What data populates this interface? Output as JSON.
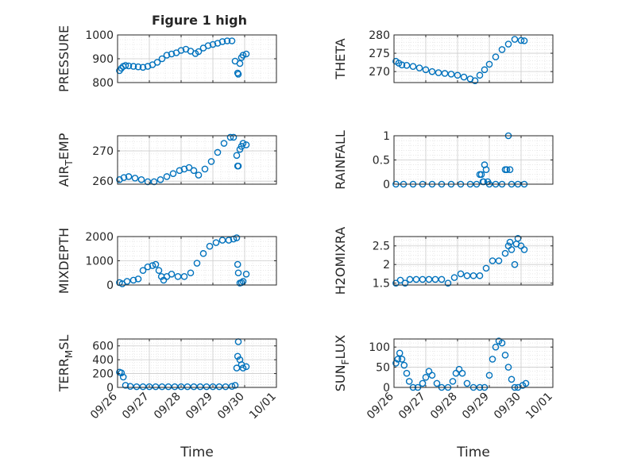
{
  "figure": {
    "title": "Figure 1 high",
    "marker_color": "#0072BD",
    "x_ticks": [
      "09/26",
      "09/27",
      "09/28",
      "09/29",
      "09/30",
      "10/01"
    ],
    "xlabel": "Time"
  },
  "chart_data": [
    {
      "type": "scatter",
      "ylabel": "PRESSURE",
      "ylim": [
        800,
        1000
      ],
      "yticks": [
        800,
        900,
        1000
      ],
      "grid": true,
      "x": [
        0.06,
        0.12,
        0.18,
        0.25,
        0.35,
        0.5,
        0.65,
        0.8,
        0.95,
        1.1,
        1.25,
        1.4,
        1.55,
        1.7,
        1.85,
        2.0,
        2.15,
        2.3,
        2.45,
        2.55,
        2.7,
        2.85,
        3.0,
        3.15,
        3.3,
        3.45,
        3.6,
        3.7,
        3.78,
        3.8,
        3.85,
        3.9,
        3.95,
        4.05
      ],
      "values": [
        850,
        860,
        868,
        872,
        870,
        868,
        866,
        864,
        868,
        875,
        885,
        900,
        915,
        920,
        925,
        935,
        940,
        932,
        922,
        930,
        945,
        955,
        960,
        965,
        972,
        975,
        975,
        890,
        840,
        835,
        880,
        905,
        915,
        920
      ]
    },
    {
      "type": "scatter",
      "ylabel": "THETA",
      "ylim": [
        267,
        280
      ],
      "yticks": [
        270,
        275,
        280
      ],
      "grid": true,
      "x": [
        0.06,
        0.15,
        0.25,
        0.4,
        0.6,
        0.8,
        1.0,
        1.2,
        1.4,
        1.6,
        1.8,
        2.0,
        2.2,
        2.4,
        2.55,
        2.7,
        2.85,
        3.0,
        3.2,
        3.4,
        3.6,
        3.8,
        4.0,
        4.1
      ],
      "values": [
        272.8,
        272.3,
        271.8,
        271.7,
        271.4,
        271.0,
        270.5,
        270.0,
        269.7,
        269.5,
        269.3,
        269.0,
        268.5,
        268.0,
        267.5,
        269.0,
        270.5,
        272.0,
        274.0,
        276.0,
        277.5,
        278.8,
        278.5,
        278.4
      ]
    },
    {
      "type": "scatter",
      "ylabel": "AIR_TEMP",
      "ylim": [
        259,
        275
      ],
      "yticks": [
        260,
        270
      ],
      "grid": true,
      "x": [
        0.06,
        0.2,
        0.35,
        0.55,
        0.75,
        0.95,
        1.15,
        1.35,
        1.55,
        1.75,
        1.95,
        2.1,
        2.25,
        2.4,
        2.55,
        2.75,
        2.95,
        3.15,
        3.35,
        3.55,
        3.65,
        3.75,
        3.78,
        3.8,
        3.85,
        3.9,
        3.95,
        4.05
      ],
      "values": [
        260.5,
        261.2,
        261.5,
        261.0,
        260.5,
        259.8,
        259.8,
        260.5,
        261.5,
        262.5,
        263.5,
        264.0,
        264.5,
        263.5,
        262.0,
        264.0,
        266.5,
        269.5,
        272.5,
        274.5,
        274.5,
        268.5,
        265.0,
        265.0,
        270.5,
        271.5,
        272.5,
        272.0
      ]
    },
    {
      "type": "scatter",
      "ylabel": "RAINFALL",
      "ylim": [
        0,
        1
      ],
      "yticks": [
        0,
        0.5,
        1
      ],
      "grid": true,
      "x": [
        0.06,
        0.3,
        0.6,
        0.9,
        1.2,
        1.5,
        1.8,
        2.1,
        2.4,
        2.6,
        2.7,
        2.75,
        2.8,
        2.82,
        2.85,
        2.9,
        2.95,
        3.0,
        3.2,
        3.4,
        3.5,
        3.55,
        3.6,
        3.65,
        3.7,
        3.9,
        4.1
      ],
      "values": [
        0,
        0,
        0,
        0,
        0,
        0,
        0,
        0,
        0,
        0,
        0.2,
        0.2,
        0.05,
        0.05,
        0.4,
        0.3,
        0.05,
        0,
        0,
        0,
        0.3,
        0.3,
        1.0,
        0.3,
        0,
        0,
        0
      ]
    },
    {
      "type": "scatter",
      "ylabel": "MIXDEPTH",
      "ylim": [
        0,
        2000
      ],
      "yticks": [
        0,
        1000,
        2000
      ],
      "grid": true,
      "x": [
        0.06,
        0.15,
        0.3,
        0.5,
        0.65,
        0.8,
        0.95,
        1.1,
        1.2,
        1.3,
        1.38,
        1.45,
        1.55,
        1.7,
        1.9,
        2.1,
        2.3,
        2.5,
        2.7,
        2.9,
        3.1,
        3.3,
        3.5,
        3.65,
        3.75,
        3.78,
        3.8,
        3.85,
        3.9,
        3.95,
        4.05
      ],
      "values": [
        100,
        50,
        150,
        200,
        250,
        600,
        750,
        800,
        850,
        600,
        350,
        200,
        350,
        450,
        350,
        350,
        500,
        900,
        1300,
        1600,
        1750,
        1850,
        1850,
        1900,
        1950,
        850,
        500,
        80,
        100,
        150,
        450
      ]
    },
    {
      "type": "scatter",
      "ylabel": "H2OMIXRA",
      "ylim": [
        1.45,
        2.75
      ],
      "yticks": [
        1.5,
        2,
        2.5
      ],
      "grid": true,
      "x": [
        0.06,
        0.2,
        0.35,
        0.5,
        0.7,
        0.9,
        1.1,
        1.3,
        1.5,
        1.7,
        1.9,
        2.1,
        2.3,
        2.5,
        2.7,
        2.9,
        3.1,
        3.3,
        3.5,
        3.6,
        3.65,
        3.7,
        3.8,
        3.85,
        3.9,
        4.0,
        4.1
      ],
      "values": [
        1.5,
        1.58,
        1.5,
        1.6,
        1.6,
        1.6,
        1.6,
        1.6,
        1.6,
        1.5,
        1.65,
        1.75,
        1.7,
        1.7,
        1.7,
        1.9,
        2.1,
        2.1,
        2.3,
        2.5,
        2.6,
        2.4,
        2.0,
        2.55,
        2.7,
        2.5,
        2.4
      ]
    },
    {
      "type": "scatter",
      "ylabel": "TERR_MSL",
      "ylim": [
        0,
        700
      ],
      "yticks": [
        0,
        200,
        400,
        600
      ],
      "grid": true,
      "x": [
        0.06,
        0.12,
        0.18,
        0.25,
        0.4,
        0.6,
        0.8,
        1.0,
        1.2,
        1.4,
        1.6,
        1.8,
        2.0,
        2.2,
        2.4,
        2.6,
        2.8,
        3.0,
        3.2,
        3.4,
        3.6,
        3.7,
        3.75,
        3.78,
        3.8,
        3.85,
        3.9,
        3.95,
        4.05
      ],
      "values": [
        220,
        210,
        150,
        30,
        15,
        10,
        10,
        10,
        10,
        10,
        10,
        10,
        10,
        10,
        10,
        10,
        10,
        10,
        10,
        10,
        15,
        30,
        280,
        450,
        660,
        400,
        330,
        280,
        300
      ]
    },
    {
      "type": "scatter",
      "ylabel": "SUN_FLUX",
      "ylim": [
        0,
        120
      ],
      "yticks": [
        0,
        50,
        100
      ],
      "grid": true,
      "x": [
        0.06,
        0.12,
        0.18,
        0.25,
        0.32,
        0.4,
        0.48,
        0.6,
        0.75,
        0.9,
        1.0,
        1.1,
        1.2,
        1.35,
        1.5,
        1.7,
        1.85,
        1.95,
        2.05,
        2.15,
        2.3,
        2.5,
        2.7,
        2.85,
        3.0,
        3.1,
        3.2,
        3.3,
        3.4,
        3.5,
        3.6,
        3.7,
        3.8,
        3.9,
        4.05,
        4.15
      ],
      "values": [
        60,
        70,
        85,
        70,
        55,
        35,
        15,
        0,
        0,
        10,
        25,
        40,
        30,
        10,
        0,
        0,
        15,
        35,
        45,
        35,
        10,
        0,
        0,
        0,
        30,
        70,
        100,
        115,
        110,
        80,
        50,
        20,
        0,
        0,
        5,
        10
      ]
    }
  ]
}
